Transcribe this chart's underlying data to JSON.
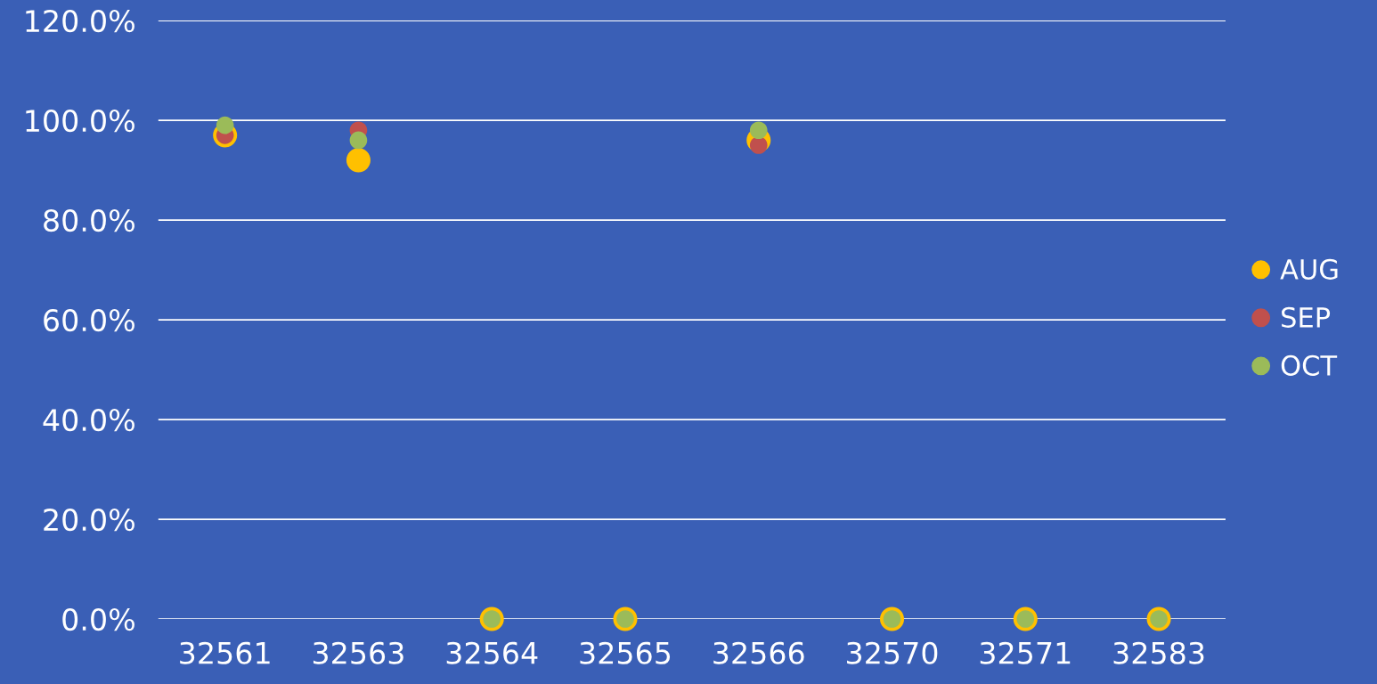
{
  "chart_data": {
    "type": "scatter",
    "categories": [
      "32561",
      "32563",
      "32564",
      "32565",
      "32566",
      "32570",
      "32571",
      "32583"
    ],
    "series": [
      {
        "name": "AUG",
        "color": "#ffc000",
        "values": [
          97,
          92,
          0,
          0,
          96,
          0,
          0,
          0
        ]
      },
      {
        "name": "SEP",
        "color": "#c0504d",
        "values": [
          97,
          98,
          null,
          null,
          95,
          null,
          null,
          null
        ]
      },
      {
        "name": "OCT",
        "color": "#9bbb59",
        "values": [
          99,
          96,
          0,
          0,
          98,
          0,
          0,
          0
        ]
      }
    ],
    "ylim": [
      0,
      120
    ],
    "yticks": [
      {
        "value": 0,
        "label": "0.0%"
      },
      {
        "value": 20,
        "label": "20.0%"
      },
      {
        "value": 40,
        "label": "40.0%"
      },
      {
        "value": 60,
        "label": "60.0%"
      },
      {
        "value": 80,
        "label": "80.0%"
      },
      {
        "value": 100,
        "label": "100.0%"
      },
      {
        "value": 120,
        "label": "120.0%"
      }
    ],
    "grid": "y",
    "legend": "right",
    "marker": "circle"
  }
}
